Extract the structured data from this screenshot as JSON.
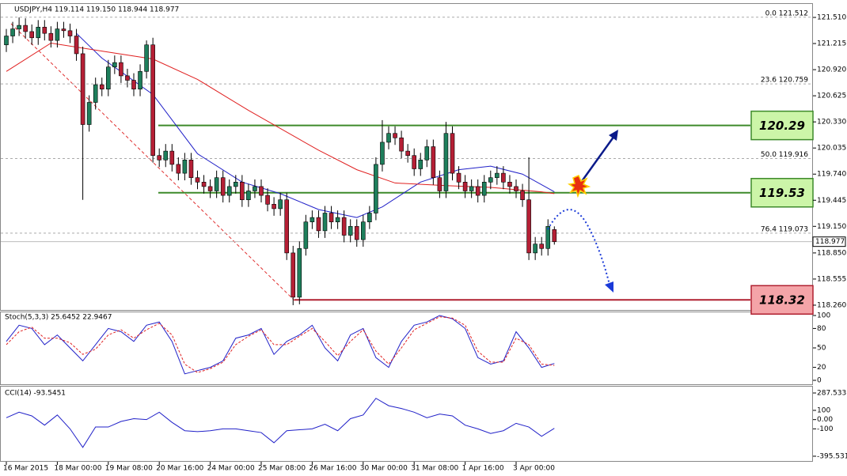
{
  "chart_data": [
    {
      "type": "candlestick",
      "header": "USDJPY,H4 119.114 119.150 118.944 118.977",
      "up_color": "#1e7f5c",
      "down_color": "#b51f35",
      "open": [
        121.2,
        121.3,
        121.38,
        121.42,
        121.35,
        121.28,
        121.4,
        121.33,
        121.25,
        121.38,
        121.36,
        121.3,
        121.1,
        120.3,
        120.55,
        120.75,
        120.7,
        120.95,
        121.0,
        120.85,
        120.8,
        120.7,
        120.9,
        121.2,
        119.95,
        119.9,
        120.0,
        119.85,
        119.75,
        119.9,
        119.7,
        119.65,
        119.6,
        119.55,
        119.7,
        119.5,
        119.6,
        119.65,
        119.45,
        119.55,
        119.6,
        119.5,
        119.4,
        119.35,
        119.45,
        118.85,
        118.35,
        118.9,
        119.2,
        119.25,
        119.1,
        119.3,
        119.2,
        119.25,
        119.05,
        119.15,
        119.0,
        119.2,
        119.3,
        119.85,
        120.1,
        120.2,
        120.15,
        120.0,
        119.95,
        119.8,
        119.9,
        120.05,
        119.7,
        119.55,
        120.2,
        119.75,
        119.65,
        119.55,
        119.6,
        119.5,
        119.65,
        119.7,
        119.75,
        119.65,
        119.6,
        119.55,
        119.45,
        118.85,
        118.95,
        118.9,
        119.114
      ],
      "high": [
        121.38,
        121.46,
        121.51,
        121.5,
        121.43,
        121.48,
        121.48,
        121.41,
        121.46,
        121.46,
        121.44,
        121.38,
        121.18,
        120.63,
        120.83,
        120.83,
        121.03,
        121.08,
        121.08,
        120.93,
        120.88,
        120.98,
        121.25,
        121.28,
        120.03,
        120.08,
        120.08,
        119.93,
        119.98,
        119.98,
        119.78,
        119.73,
        119.68,
        119.78,
        119.78,
        119.68,
        119.73,
        119.73,
        119.63,
        119.68,
        119.68,
        119.58,
        119.48,
        119.53,
        119.53,
        118.93,
        118.98,
        119.28,
        119.33,
        119.33,
        119.38,
        119.38,
        119.33,
        119.33,
        119.23,
        119.23,
        119.28,
        119.38,
        119.93,
        120.35,
        120.28,
        120.28,
        120.23,
        120.08,
        120.03,
        119.98,
        120.13,
        120.13,
        119.78,
        120.33,
        120.28,
        119.83,
        119.73,
        119.68,
        119.68,
        119.73,
        119.78,
        119.83,
        119.83,
        119.73,
        119.68,
        119.63,
        119.93,
        119.03,
        119.03,
        119.23,
        119.15
      ],
      "low": [
        121.12,
        121.22,
        121.3,
        121.27,
        121.2,
        121.2,
        121.25,
        121.17,
        121.17,
        121.28,
        121.22,
        121.02,
        119.45,
        120.22,
        120.47,
        120.62,
        120.62,
        120.87,
        120.77,
        120.72,
        120.62,
        120.62,
        120.82,
        119.87,
        119.82,
        119.82,
        119.77,
        119.67,
        119.67,
        119.62,
        119.57,
        119.52,
        119.47,
        119.47,
        119.42,
        119.42,
        119.52,
        119.37,
        119.37,
        119.47,
        119.42,
        119.32,
        119.27,
        119.27,
        118.77,
        118.26,
        118.27,
        118.82,
        119.12,
        119.02,
        119.02,
        119.12,
        119.12,
        118.97,
        118.97,
        118.92,
        118.92,
        119.12,
        119.22,
        119.77,
        120.02,
        120.07,
        119.92,
        119.87,
        119.72,
        119.72,
        119.82,
        119.62,
        119.47,
        119.47,
        119.67,
        119.57,
        119.47,
        119.47,
        119.42,
        119.42,
        119.57,
        119.62,
        119.57,
        119.52,
        119.47,
        119.37,
        118.77,
        118.77,
        118.82,
        118.82,
        118.944
      ],
      "close": [
        121.3,
        121.38,
        121.42,
        121.35,
        121.28,
        121.4,
        121.33,
        121.25,
        121.38,
        121.36,
        121.3,
        121.1,
        120.3,
        120.55,
        120.75,
        120.7,
        120.95,
        121.0,
        120.85,
        120.8,
        120.7,
        120.9,
        121.2,
        119.95,
        119.9,
        120.0,
        119.85,
        119.75,
        119.9,
        119.7,
        119.65,
        119.6,
        119.55,
        119.7,
        119.5,
        119.6,
        119.65,
        119.45,
        119.55,
        119.6,
        119.5,
        119.4,
        119.35,
        119.45,
        118.85,
        118.35,
        118.9,
        119.2,
        119.25,
        119.1,
        119.3,
        119.2,
        119.25,
        119.05,
        119.15,
        119.0,
        119.2,
        119.3,
        119.85,
        120.1,
        120.2,
        120.15,
        120.0,
        119.95,
        119.8,
        119.9,
        120.05,
        119.7,
        119.55,
        120.2,
        119.75,
        119.65,
        119.55,
        119.6,
        119.5,
        119.65,
        119.7,
        119.75,
        119.65,
        119.6,
        119.55,
        119.45,
        118.85,
        118.95,
        118.9,
        119.15,
        118.977
      ],
      "series": [
        {
          "color": "#2020c8",
          "x": [
            11,
            15,
            23,
            30,
            37,
            43,
            49,
            55,
            59,
            65,
            71,
            76,
            81,
            86
          ],
          "values": [
            121.33,
            121.05,
            120.64,
            119.97,
            119.65,
            119.52,
            119.34,
            119.25,
            119.37,
            119.65,
            119.79,
            119.83,
            119.74,
            119.54
          ]
        },
        {
          "color": "#e02020",
          "x": [
            0,
            7,
            15,
            23,
            30,
            38,
            49,
            55,
            61,
            69,
            76,
            84,
            86
          ],
          "values": [
            120.9,
            121.22,
            121.13,
            121.04,
            120.81,
            120.46,
            120.01,
            119.79,
            119.64,
            119.61,
            119.59,
            119.54,
            119.52
          ]
        }
      ],
      "ylim": [
        118.206,
        121.662
      ],
      "yticks": [
        {
          "value": 121.51,
          "label": "121.510"
        },
        121.215,
        {
          "value": 120.92,
          "label": "120.920"
        },
        120.625,
        {
          "value": 120.33,
          "label": "120.330"
        },
        120.035,
        {
          "value": 119.74,
          "label": "119.740"
        },
        119.445,
        {
          "value": 119.15,
          "label": "119.150"
        },
        {
          "value": 118.85,
          "label": "118.850"
        },
        118.555,
        {
          "value": 118.26,
          "label": "118.260"
        }
      ],
      "current_price": 118.977,
      "fib_levels": [
        {
          "value": 121.512,
          "label": "0.0  121.512"
        },
        {
          "value": 120.759,
          "label": "23.6  120.759"
        },
        {
          "value": 119.916,
          "label": "50.0  119.916"
        },
        {
          "value": 119.073,
          "label": "76.4  119.073"
        }
      ],
      "levels": [
        {
          "value": 120.29,
          "color": "#3d8a2a",
          "fill": "#ccf5a8"
        },
        {
          "value": 119.53,
          "color": "#3d8a2a",
          "fill": "#ccf5a8"
        },
        {
          "value": 118.32,
          "color": "#b02030",
          "fill": "#f4a4a8"
        }
      ],
      "xticks": [
        {
          "value": 0,
          "label": "16 Mar 2015"
        },
        {
          "value": 8,
          "label": "18 Mar 00:00"
        },
        {
          "value": 16,
          "label": "19 Mar 08:00"
        },
        {
          "value": 24,
          "label": "20 Mar 16:00"
        },
        {
          "value": 32,
          "label": "24 Mar 00:00"
        },
        {
          "value": 40,
          "label": "25 Mar 08:00"
        },
        {
          "value": 48,
          "label": "26 Mar 16:00"
        },
        {
          "value": 56,
          "label": "30 Mar 00:00"
        },
        {
          "value": 64,
          "label": "31 Mar 08:00"
        },
        {
          "value": 72,
          "label": "1 Apr 16:00"
        },
        {
          "value": 80,
          "label": "3 Apr 00:00"
        }
      ]
    },
    {
      "type": "line",
      "label": "Stoch(5,3,3) 25.6452 22.9467",
      "x": [
        0,
        2,
        4,
        6,
        8,
        10,
        12,
        14,
        16,
        18,
        20,
        22,
        24,
        26,
        28,
        30,
        32,
        34,
        36,
        38,
        40,
        42,
        44,
        46,
        48,
        50,
        52,
        54,
        56,
        58,
        60,
        62,
        64,
        66,
        68,
        70,
        72,
        74,
        76,
        78,
        80,
        82,
        84,
        86
      ],
      "series": [
        {
          "color": "#2020c8",
          "values": [
            60,
            85,
            80,
            55,
            70,
            50,
            30,
            55,
            80,
            75,
            60,
            85,
            90,
            60,
            10,
            15,
            20,
            30,
            65,
            70,
            80,
            40,
            60,
            70,
            85,
            50,
            30,
            70,
            80,
            35,
            20,
            60,
            85,
            90,
            100,
            95,
            80,
            35,
            25,
            30,
            75,
            50,
            20,
            26
          ]
        },
        {
          "color": "#e02020",
          "dashed": true,
          "values": [
            55,
            75,
            82,
            65,
            65,
            58,
            40,
            48,
            70,
            78,
            65,
            78,
            88,
            70,
            25,
            12,
            18,
            28,
            55,
            68,
            78,
            55,
            55,
            68,
            80,
            60,
            38,
            60,
            78,
            45,
            25,
            50,
            78,
            88,
            98,
            96,
            85,
            45,
            28,
            28,
            65,
            55,
            25,
            23
          ]
        }
      ],
      "ylim": [
        -6.1,
        104.9
      ],
      "yticks": [
        100,
        80,
        50,
        20,
        0
      ]
    },
    {
      "type": "line",
      "label": "CCI(14) -93.5451",
      "x": [
        0,
        2,
        4,
        6,
        8,
        10,
        12,
        14,
        16,
        18,
        20,
        22,
        24,
        26,
        28,
        30,
        32,
        34,
        36,
        38,
        40,
        42,
        44,
        46,
        48,
        50,
        52,
        54,
        56,
        58,
        60,
        62,
        64,
        66,
        68,
        70,
        72,
        74,
        76,
        78,
        80,
        82,
        84,
        86
      ],
      "series": [
        {
          "color": "#2020c8",
          "values": [
            20,
            80,
            40,
            -60,
            50,
            -100,
            -300,
            -80,
            -80,
            -20,
            10,
            0,
            80,
            -30,
            -120,
            -130,
            -120,
            -100,
            -100,
            -120,
            -140,
            -250,
            -120,
            -110,
            -100,
            -50,
            -120,
            10,
            50,
            230,
            150,
            120,
            80,
            20,
            60,
            40,
            -60,
            -100,
            -150,
            -120,
            -40,
            -80,
            -180,
            -94
          ]
        }
      ],
      "ylim": [
        -447,
        356
      ],
      "yticks": [
        287.533,
        100,
        {
          "value": 0,
          "label": "0.00"
        },
        -100,
        -395.5315
      ]
    }
  ]
}
